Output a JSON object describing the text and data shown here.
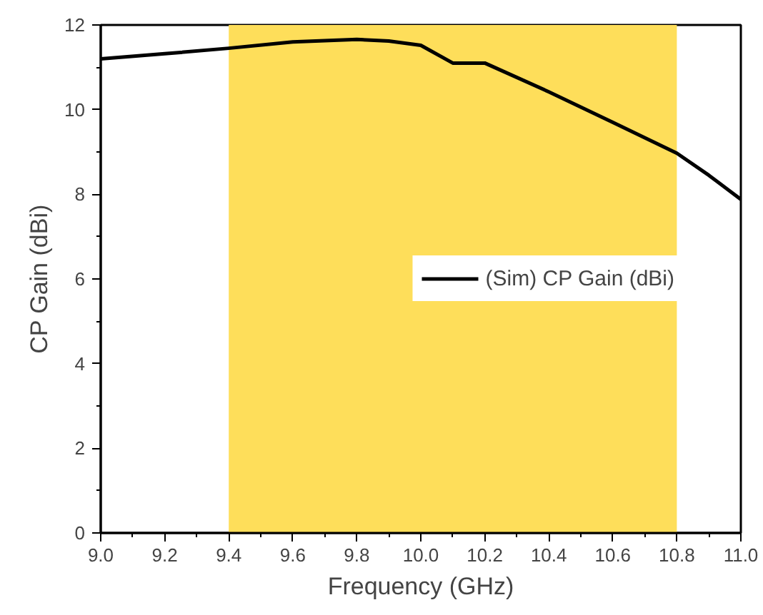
{
  "chart_data": {
    "type": "line",
    "xlabel": "Frequency (GHz)",
    "ylabel": "CP Gain (dBi)",
    "x": [
      9.0,
      9.2,
      9.4,
      9.6,
      9.8,
      9.9,
      10.0,
      10.1,
      10.2,
      10.4,
      10.6,
      10.8,
      10.9,
      11.0
    ],
    "series": [
      {
        "name": "(Sim) CP Gain (dBi)",
        "color": "#000000",
        "values": [
          11.2,
          11.32,
          11.45,
          11.6,
          11.66,
          11.62,
          11.52,
          11.1,
          11.1,
          10.42,
          9.7,
          8.97,
          8.45,
          7.88
        ]
      }
    ],
    "xlim": [
      9.0,
      11.0
    ],
    "xticks": [
      {
        "value": 9.0,
        "label": "9.0"
      },
      {
        "value": 9.2,
        "label": "9.2"
      },
      {
        "value": 9.4,
        "label": "9.4"
      },
      {
        "value": 9.6,
        "label": "9.6"
      },
      {
        "value": 9.8,
        "label": "9.8"
      },
      {
        "value": 10.0,
        "label": "10.0"
      },
      {
        "value": 10.2,
        "label": "10.2"
      },
      {
        "value": 10.4,
        "label": "10.4"
      },
      {
        "value": 10.6,
        "label": "10.6"
      },
      {
        "value": 10.8,
        "label": "10.8"
      },
      {
        "value": 11.0,
        "label": "11.0"
      }
    ],
    "ylim": [
      0,
      12
    ],
    "yticks": [
      0,
      2,
      4,
      6,
      8,
      10,
      12
    ],
    "bands": [
      {
        "axis": "x",
        "from": 9.4,
        "to": 10.8,
        "color": "#fede5a"
      }
    ],
    "legend": "right",
    "grid": false,
    "line_style": "solid"
  }
}
